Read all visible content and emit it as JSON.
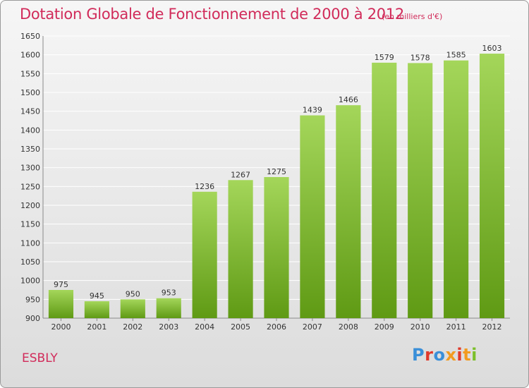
{
  "header": {
    "title": "Dotation Globale de Fonctionnement de 2000 à 2012",
    "subtitle": "(en milliers d'€)"
  },
  "commune": "ESBLY",
  "logo": {
    "text": "Proxiti",
    "letter_colors": [
      "#3a8fd8",
      "#e0392b",
      "#3a8fd8",
      "#f29b1f",
      "#e0392b",
      "#f29b1f",
      "#7cbf2a"
    ]
  },
  "colors": {
    "bar_top": "#a4d65a",
    "bar_bottom": "#5f9a14",
    "grid": "#ffffff",
    "accent": "#d12b5a"
  },
  "chart_data": {
    "type": "bar",
    "title": "Dotation Globale de Fonctionnement de 2000 à 2012",
    "subtitle": "(en milliers d'€)",
    "categories": [
      "2000",
      "2001",
      "2002",
      "2003",
      "2004",
      "2005",
      "2006",
      "2007",
      "2008",
      "2009",
      "2010",
      "2011",
      "2012"
    ],
    "values": [
      975,
      945,
      950,
      953,
      1236,
      1267,
      1275,
      1439,
      1466,
      1579,
      1578,
      1585,
      1603
    ],
    "xlabel": "",
    "ylabel": "",
    "ylim": [
      900,
      1650
    ],
    "yticks": [
      900,
      950,
      1000,
      1050,
      1100,
      1150,
      1200,
      1250,
      1300,
      1350,
      1400,
      1450,
      1500,
      1550,
      1600,
      1650
    ],
    "grid": true,
    "legend": "none"
  }
}
